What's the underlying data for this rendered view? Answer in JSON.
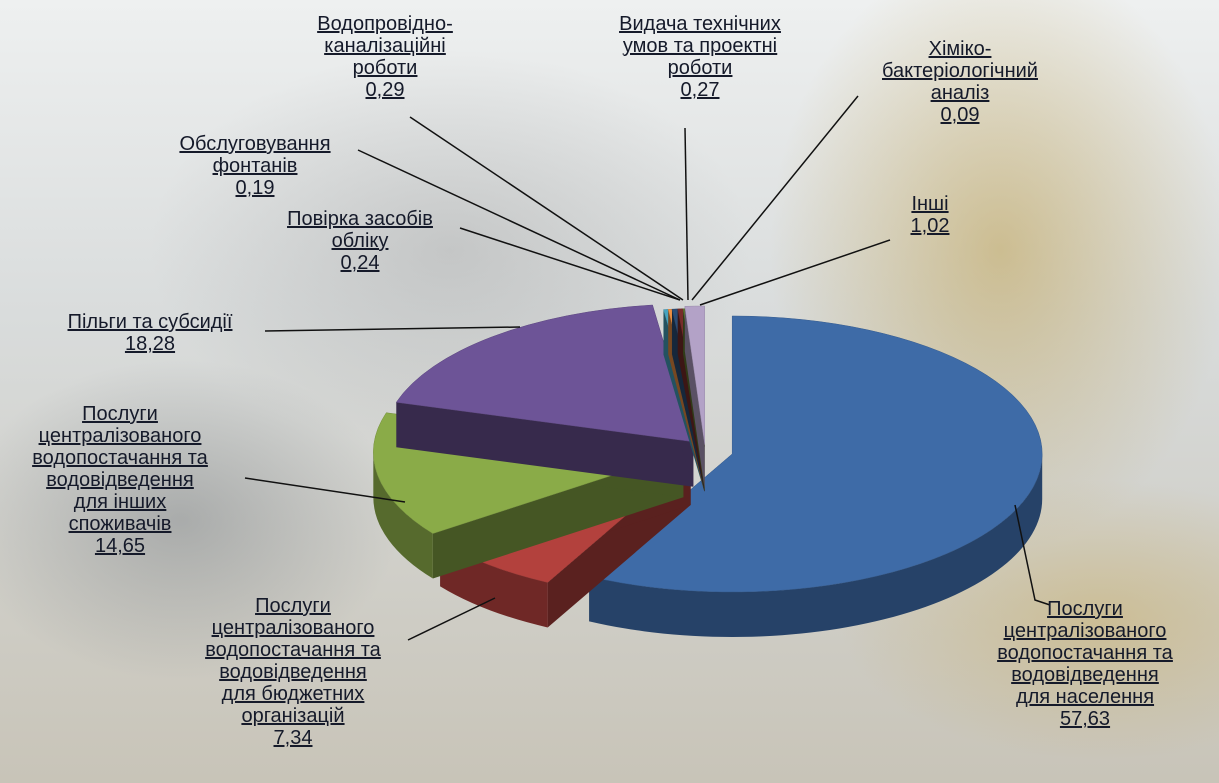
{
  "chart_data": {
    "type": "pie3d",
    "categories": [
      "Послуги\nцентралізованого\nводопостачання та\nводовідведення\nдля населення",
      "Послуги\nцентралізованого\nводопостачання та\nводовідведення\nдля бюджетних\nорганізацій",
      "Послуги\nцентралізованого\nводопостачання та\nводовідведення\nдля інших\nспоживачів",
      "Пільги та субсидії",
      "Повірка засобів\nобліку",
      "Обслуговування\nфонтанів",
      "Водопровідно-\nканалізаційні\nроботи",
      "Видача технічних\nумов та проектні\nроботи",
      "Хіміко-\nбактеріологічний\nаналіз",
      "Інші"
    ],
    "values": [
      57.63,
      7.34,
      14.65,
      18.28,
      0.24,
      0.19,
      0.29,
      0.27,
      0.09,
      1.02
    ],
    "value_labels": [
      "57,63",
      "7,34",
      "14,65",
      "18,28",
      "0,24",
      "0,19",
      "0,29",
      "0,27",
      "0,09",
      "1,02"
    ],
    "colors": [
      "#3e6ba7",
      "#b3413d",
      "#8aab48",
      "#6d5497",
      "#46a3bf",
      "#ee8f42",
      "#2c4d75",
      "#772c2a",
      "#5f7530",
      "#b3a2c7"
    ]
  }
}
